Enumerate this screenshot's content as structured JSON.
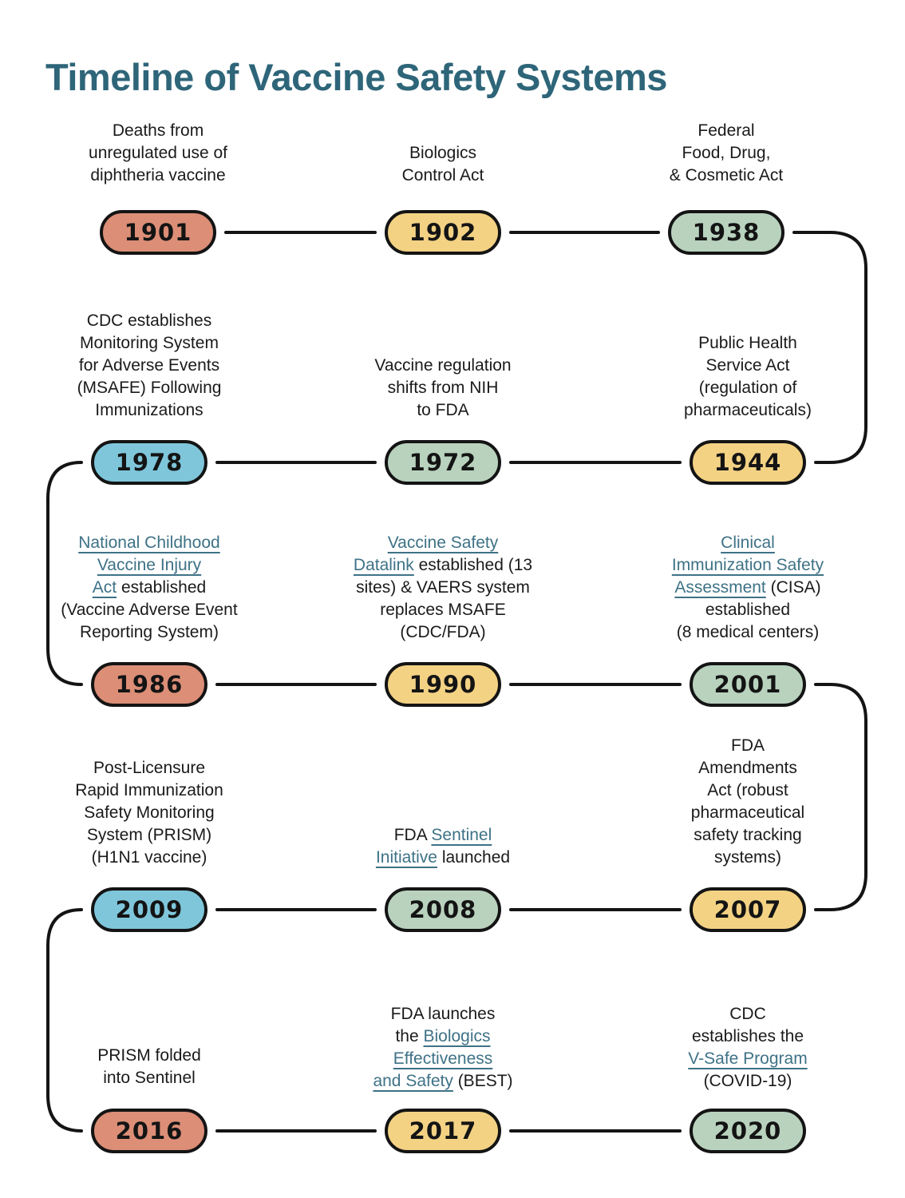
{
  "title": "Timeline of Vaccine Safety Systems",
  "palette": {
    "salmon": "#DC8E77",
    "yellow": "#F3D284",
    "green": "#B9D2BE",
    "blue": "#7FC6DB",
    "line": "#141414",
    "title_text": "#2E6579",
    "link_text": "#3E7286",
    "label_text": "#1A1A1A"
  },
  "events": [
    {
      "year": "1901",
      "color": "salmon",
      "label": [
        {
          "t": "Deaths from\nunregulated use of\ndiphtheria vaccine"
        }
      ]
    },
    {
      "year": "1902",
      "color": "yellow",
      "label": [
        {
          "t": "Biologics\nControl Act"
        }
      ]
    },
    {
      "year": "1938",
      "color": "green",
      "label": [
        {
          "t": "Federal\nFood, Drug,\n& Cosmetic Act"
        }
      ]
    },
    {
      "year": "1978",
      "color": "blue",
      "label": [
        {
          "t": "CDC establishes\nMonitoring System\nfor Adverse Events\n(MSAFE) Following\nImmunizations"
        }
      ]
    },
    {
      "year": "1972",
      "color": "green",
      "label": [
        {
          "t": "Vaccine regulation\nshifts from NIH\nto FDA"
        }
      ]
    },
    {
      "year": "1944",
      "color": "yellow",
      "label": [
        {
          "t": "Public Health\nService Act\n(regulation of\npharmaceuticals)"
        }
      ]
    },
    {
      "year": "1986",
      "color": "salmon",
      "label": [
        {
          "t": "National Childhood\nVaccine Injury\nAct",
          "link": true,
          "name": "link-national-childhood-vaccine-injury-act"
        },
        {
          "t": " established\n(Vaccine Adverse Event\nReporting System)"
        }
      ]
    },
    {
      "year": "1990",
      "color": "yellow",
      "label": [
        {
          "t": "Vaccine Safety\nDatalink",
          "link": true,
          "name": "link-vaccine-safety-datalink"
        },
        {
          "t": " established (13\nsites) & VAERS system\nreplaces MSAFE\n(CDC/FDA)"
        }
      ]
    },
    {
      "year": "2001",
      "color": "green",
      "label": [
        {
          "t": "Clinical\nImmunization Safety\nAssessment",
          "link": true,
          "name": "link-clinical-immunization-safety-assessment"
        },
        {
          "t": " (CISA)\nestablished\n(8 medical centers)"
        }
      ]
    },
    {
      "year": "2009",
      "color": "blue",
      "label": [
        {
          "t": "Post-Licensure\nRapid Immunization\nSafety Monitoring\nSystem (PRISM)\n(H1N1 vaccine)"
        }
      ]
    },
    {
      "year": "2008",
      "color": "green",
      "label": [
        {
          "t": "FDA "
        },
        {
          "t": "Sentinel\nInitiative",
          "link": true,
          "name": "link-sentinel-initiative"
        },
        {
          "t": " launched"
        }
      ]
    },
    {
      "year": "2007",
      "color": "yellow",
      "label": [
        {
          "t": "FDA\nAmendments\nAct (robust\npharmaceutical\nsafety tracking\nsystems)"
        }
      ]
    },
    {
      "year": "2016",
      "color": "salmon",
      "label": [
        {
          "t": "PRISM folded\ninto Sentinel"
        }
      ]
    },
    {
      "year": "2017",
      "color": "yellow",
      "label": [
        {
          "t": "FDA launches\nthe "
        },
        {
          "t": "Biologics\nEffectiveness\nand Safety",
          "link": true,
          "name": "link-biologics-effectiveness-and-safety"
        },
        {
          "t": " (BEST)"
        }
      ]
    },
    {
      "year": "2020",
      "color": "green",
      "label": [
        {
          "t": "CDC\nestablishes the\n"
        },
        {
          "t": "V-Safe Program",
          "link": true,
          "name": "link-v-safe-program"
        },
        {
          "t": "\n(COVID-19)"
        }
      ]
    }
  ]
}
